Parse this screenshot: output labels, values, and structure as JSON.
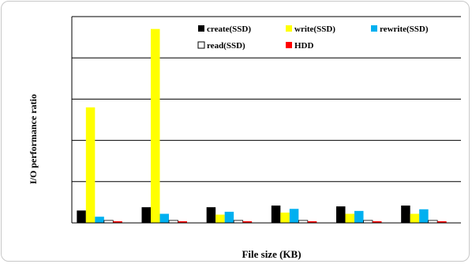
{
  "chart_data": {
    "type": "bar",
    "title": "",
    "xlabel": "File size (KB)",
    "ylabel": "I/O performance ratio",
    "categories": [
      "",
      "",
      "",
      "",
      "",
      ""
    ],
    "ylim": [
      0,
      5
    ],
    "grid": true,
    "legend_position": "top-right",
    "series": [
      {
        "name": "create(SSD)",
        "color": "#000000",
        "values": [
          0.3,
          0.38,
          0.38,
          0.42,
          0.4,
          0.42
        ]
      },
      {
        "name": "write(SSD)",
        "color": "#ffff00",
        "values": [
          2.8,
          4.7,
          0.2,
          0.25,
          0.22,
          0.22
        ]
      },
      {
        "name": "rewrite(SSD)",
        "color": "#00b0f0",
        "values": [
          0.15,
          0.22,
          0.27,
          0.34,
          0.29,
          0.33
        ]
      },
      {
        "name": "read(SSD)",
        "color": "#ffffff",
        "values": [
          0.06,
          0.06,
          0.06,
          0.06,
          0.06,
          0.06
        ]
      },
      {
        "name": "HDD",
        "color": "#ff0000",
        "values": [
          0.04,
          0.04,
          0.04,
          0.04,
          0.04,
          0.04
        ]
      }
    ]
  }
}
